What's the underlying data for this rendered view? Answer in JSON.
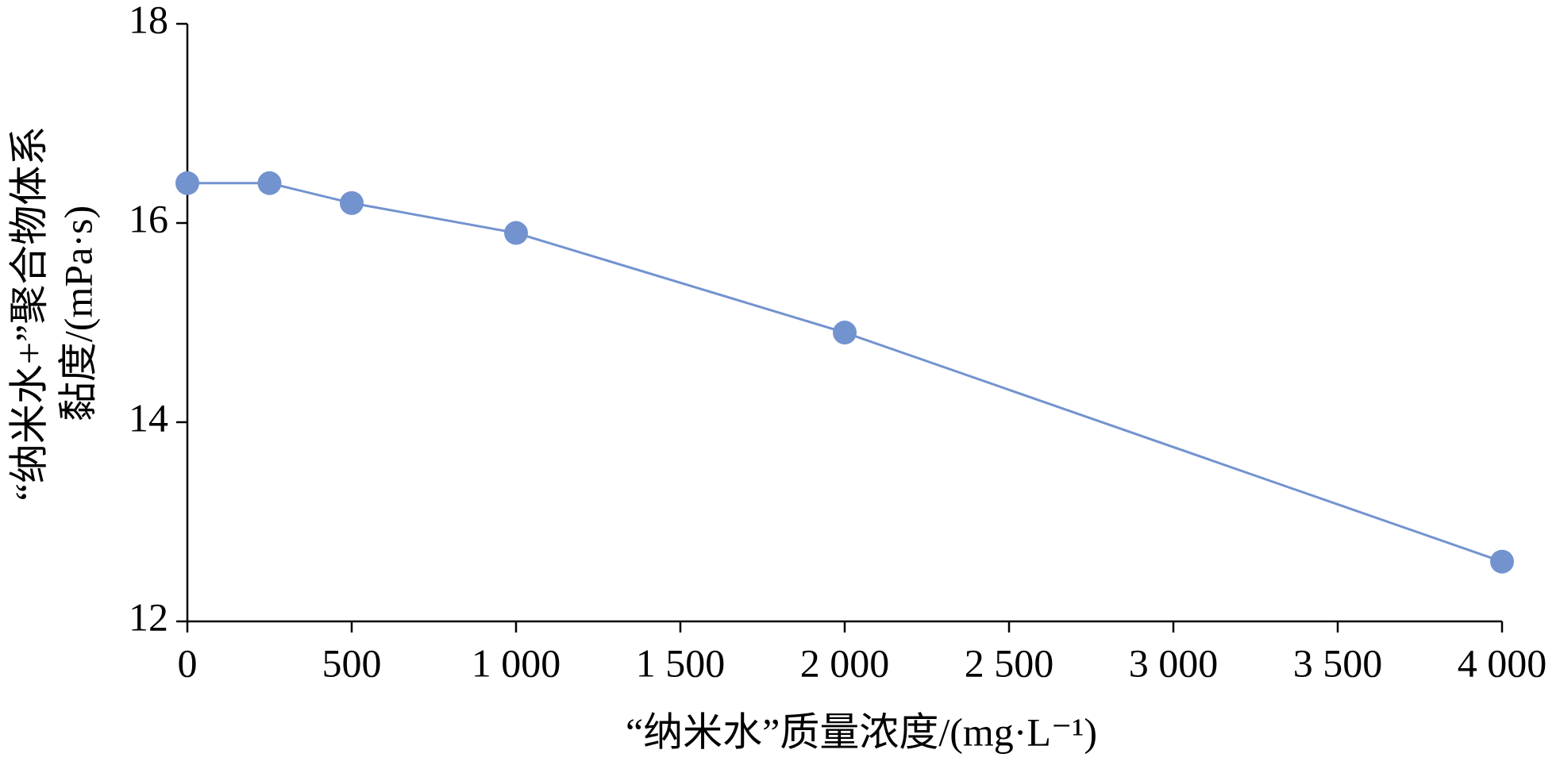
{
  "chart_data": {
    "type": "line",
    "xlabel": "“纳米水”质量浓度/(mg·L⁻¹)",
    "ylabel": [
      "“纳米水+”聚合物体系",
      "黏度/(mPa·s)"
    ],
    "x": [
      0,
      250,
      500,
      1000,
      2000,
      4000
    ],
    "series": [
      {
        "color": "#7393cf",
        "values": [
          16.4,
          16.4,
          16.2,
          15.9,
          14.9,
          12.6
        ]
      }
    ],
    "xlim": [
      0,
      4000
    ],
    "xticks": [
      0,
      500,
      {
        "value": 1000,
        "label": "1 000"
      },
      {
        "value": 1500,
        "label": "1 500"
      },
      {
        "value": 2000,
        "label": "2 000"
      },
      {
        "value": 2500,
        "label": "2 500"
      },
      {
        "value": 3000,
        "label": "3 000"
      },
      {
        "value": 3500,
        "label": "3 500"
      },
      {
        "value": 4000,
        "label": "4 000"
      }
    ],
    "ylim": [
      12,
      18
    ],
    "yticks": [
      12,
      14,
      16,
      18
    ]
  }
}
